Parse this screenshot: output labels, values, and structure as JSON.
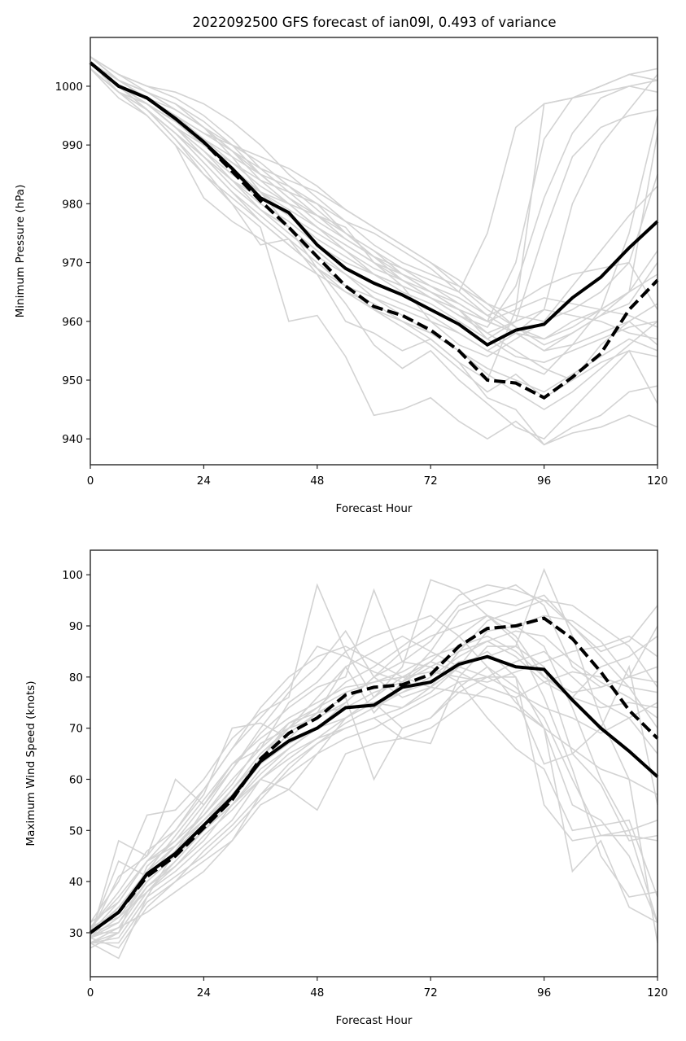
{
  "chart_data": [
    {
      "type": "line",
      "title": "2022092500 GFS forecast of ian09l, 0.493 of variance",
      "xlabel": "Forecast Hour",
      "ylabel": "Minimum Pressure (hPa)",
      "xlim": [
        0,
        120
      ],
      "ylim": [
        935.6,
        1008.3
      ],
      "xticks": [
        0,
        24,
        48,
        72,
        96,
        120
      ],
      "yticks": [
        940,
        950,
        960,
        970,
        980,
        990,
        1000
      ],
      "grid": false,
      "legend": "none",
      "x": [
        0,
        6,
        12,
        18,
        24,
        30,
        36,
        42,
        48,
        54,
        60,
        66,
        72,
        78,
        84,
        90,
        96,
        102,
        108,
        114,
        120
      ],
      "series": [
        {
          "name": "solid-mean",
          "style": "solid",
          "color": "#000000",
          "values": [
            1004,
            1000,
            998,
            994.5,
            990.5,
            986,
            981,
            978.5,
            973,
            969,
            966.5,
            964.5,
            962,
            959.5,
            956,
            958.5,
            959.5,
            964,
            967.5,
            972.5,
            977
          ]
        },
        {
          "name": "dashed-mean",
          "style": "dashed",
          "color": "#000000",
          "values": [
            1004,
            1000,
            998,
            994.5,
            990.5,
            985.5,
            980.5,
            976,
            971,
            966,
            962.5,
            961,
            958.5,
            955,
            950,
            949.5,
            947,
            950.5,
            954.5,
            962,
            967
          ]
        }
      ],
      "ensemble_color": "#d3d3d3",
      "ensemble": [
        [
          1005,
          1001,
          999,
          996,
          993,
          990,
          985,
          983,
          979,
          975,
          972,
          968,
          965,
          962,
          958,
          955,
          952,
          950,
          956,
          960,
          963
        ],
        [
          1004,
          1000,
          998,
          995,
          991,
          987,
          983,
          980,
          976,
          972,
          968,
          965,
          963,
          960,
          957,
          960,
          975,
          988,
          993,
          995,
          996
        ],
        [
          1003,
          999,
          997,
          993,
          988,
          984,
          979,
          976,
          972,
          968,
          965,
          963,
          961,
          958,
          955,
          958,
          962,
          980,
          990,
          996,
          1002
        ],
        [
          1005,
          1002,
          1000,
          998,
          995,
          991,
          986,
          982,
          978,
          974,
          971,
          967,
          964,
          961,
          959,
          966,
          981,
          992,
          998,
          1000,
          1001
        ],
        [
          1004,
          1000,
          997,
          993,
          989,
          984,
          980,
          977,
          973,
          970,
          968,
          966,
          964,
          962,
          960,
          970,
          991,
          998,
          1000,
          1002,
          1003
        ],
        [
          1003,
          999,
          996,
          992,
          987,
          982,
          978,
          974,
          970,
          966,
          962,
          960,
          957,
          953,
          950,
          962,
          997,
          998,
          1000,
          1002,
          1001
        ],
        [
          1004,
          1001,
          999,
          997,
          994,
          990,
          987,
          983,
          980,
          975,
          971,
          969,
          967,
          965,
          975,
          993,
          997,
          998,
          999,
          1000,
          999
        ],
        [
          1005,
          1002,
          1000,
          999,
          997,
          994,
          990,
          985,
          981,
          977,
          973,
          970,
          968,
          966,
          963,
          961,
          960,
          962,
          965,
          970,
          985
        ],
        [
          1003,
          998,
          995,
          990,
          985,
          981,
          977,
          973,
          969,
          966,
          964,
          962,
          960,
          958,
          955,
          953,
          951,
          956,
          962,
          975,
          995
        ],
        [
          1004,
          1000,
          996,
          992,
          988,
          984,
          981,
          978,
          975,
          972,
          969,
          967,
          965,
          963,
          960,
          958,
          955,
          958,
          961,
          965,
          992
        ],
        [
          1004,
          1000,
          997,
          993,
          989,
          985,
          982,
          980,
          978,
          976,
          970,
          966,
          960,
          956,
          954,
          957,
          960,
          966,
          972,
          978,
          983
        ],
        [
          1005,
          1001,
          998,
          995,
          992,
          989,
          986,
          984,
          982,
          979,
          976,
          973,
          970,
          967,
          963,
          959,
          956,
          958,
          961,
          963,
          970
        ],
        [
          1003,
          999,
          996,
          991,
          986,
          980,
          973,
          974,
          968,
          960,
          958,
          955,
          957,
          953,
          947,
          945,
          939,
          941,
          942,
          944,
          942
        ],
        [
          1004,
          1000,
          996,
          991,
          985,
          980,
          976,
          960,
          961,
          954,
          944,
          945,
          947,
          943,
          940,
          943,
          939,
          942,
          944,
          948,
          949
        ],
        [
          1004,
          1000,
          996,
          992,
          987,
          982,
          977,
          973,
          969,
          965,
          963,
          960,
          958,
          955,
          952,
          950,
          948,
          951,
          954,
          957,
          955
        ],
        [
          1005,
          1002,
          999,
          996,
          993,
          988,
          982,
          976,
          969,
          963,
          956,
          952,
          955,
          950,
          946,
          942,
          940,
          945,
          950,
          955,
          946
        ],
        [
          1004,
          1000,
          997,
          994,
          991,
          988,
          985,
          981,
          977,
          974,
          971,
          968,
          965,
          962,
          957,
          954,
          953,
          955,
          957,
          959,
          960
        ],
        [
          1003,
          999,
          997,
          993,
          990,
          987,
          984,
          982,
          980,
          977,
          975,
          972,
          969,
          965,
          961,
          958,
          955,
          956,
          958,
          960,
          956
        ],
        [
          1004,
          1001,
          998,
          995,
          992,
          990,
          988,
          986,
          983,
          979,
          976,
          973,
          970,
          966,
          962,
          959,
          957,
          959,
          962,
          965,
          968
        ],
        [
          1004,
          999,
          995,
          990,
          981,
          977,
          974,
          971,
          968,
          965,
          962,
          959,
          956,
          952,
          948,
          951,
          947,
          950,
          953,
          955,
          954
        ],
        [
          1004,
          1000,
          997,
          994,
          990,
          986,
          982,
          979,
          976,
          973,
          970,
          967,
          964,
          961,
          958,
          960,
          962,
          961,
          960,
          958,
          957
        ],
        [
          1005,
          1001,
          998,
          994,
          990,
          986,
          982,
          978,
          974,
          971,
          968,
          966,
          964,
          962,
          960,
          962,
          964,
          963,
          962,
          961,
          959
        ],
        [
          1004,
          1000,
          998,
          996,
          993,
          989,
          985,
          981,
          978,
          975,
          972,
          969,
          966,
          963,
          960,
          958,
          957,
          960,
          962,
          965,
          972
        ],
        [
          1003,
          999,
          996,
          992,
          988,
          983,
          979,
          975,
          971,
          968,
          964,
          961,
          958,
          955,
          951,
          948,
          945,
          948,
          952,
          956,
          960
        ],
        [
          1004,
          1001,
          999,
          997,
          993,
          989,
          984,
          980,
          976,
          973,
          970,
          968,
          966,
          964,
          961,
          963,
          966,
          968,
          969,
          970,
          962
        ]
      ]
    },
    {
      "type": "line",
      "title": "",
      "xlabel": "Forecast Hour",
      "ylabel": "Maximum Wind Speed (knots)",
      "xlim": [
        0,
        120
      ],
      "ylim": [
        21.4,
        104.8
      ],
      "xticks": [
        0,
        24,
        48,
        72,
        96,
        120
      ],
      "yticks": [
        30,
        40,
        50,
        60,
        70,
        80,
        90,
        100
      ],
      "grid": false,
      "legend": "none",
      "x": [
        0,
        6,
        12,
        18,
        24,
        30,
        36,
        42,
        48,
        54,
        60,
        66,
        72,
        78,
        84,
        90,
        96,
        102,
        108,
        114,
        120
      ],
      "series": [
        {
          "name": "solid-mean",
          "style": "solid",
          "color": "#000000",
          "values": [
            30,
            34,
            41.5,
            45.5,
            51,
            56.5,
            63.5,
            67.5,
            70,
            74,
            74.5,
            78,
            79,
            82.5,
            84,
            82,
            81.5,
            75.5,
            70,
            65.5,
            60.5
          ]
        },
        {
          "name": "dashed-mean",
          "style": "dashed",
          "color": "#000000",
          "values": [
            30,
            34,
            41,
            45,
            50.5,
            56,
            64,
            69,
            72,
            76.5,
            78,
            78.5,
            80.5,
            86,
            89.5,
            90,
            91.5,
            87.5,
            81,
            73.5,
            68
          ]
        }
      ],
      "ensemble_color": "#d3d3d3",
      "ensemble": [
        [
          29,
          48,
          45,
          52,
          58,
          66,
          72,
          78,
          86,
          84,
          81,
          79,
          85,
          93,
          95,
          94,
          96,
          90,
          85,
          87,
          94
        ],
        [
          31,
          33,
          38,
          44,
          50,
          55,
          61,
          66,
          70,
          75,
          80,
          85,
          88,
          90,
          92,
          90,
          86,
          74,
          60,
          50,
          32
        ],
        [
          28,
          25,
          37,
          46,
          54,
          62,
          70,
          77,
          82,
          89,
          80,
          76,
          78,
          82,
          85,
          80,
          55,
          48,
          49,
          50,
          52
        ],
        [
          30,
          30,
          43,
          48,
          55,
          62,
          69,
          74,
          78,
          80,
          97,
          83,
          87,
          94,
          96,
          98,
          94,
          82,
          78,
          80,
          90
        ],
        [
          32,
          40,
          53,
          54,
          60,
          68,
          73,
          76,
          98,
          85,
          76,
          82,
          99,
          97,
          92,
          88,
          80,
          76,
          82,
          84,
          88
        ],
        [
          29,
          35,
          41,
          46,
          52,
          58,
          64,
          70,
          72,
          75,
          80,
          83,
          82,
          79,
          72,
          66,
          62,
          50,
          51,
          52,
          37
        ],
        [
          28,
          28,
          36,
          40,
          44,
          48,
          55,
          58,
          65,
          72,
          75,
          70,
          72,
          78,
          82,
          78,
          72,
          60,
          49,
          49,
          48
        ],
        [
          30,
          44,
          41,
          47,
          52,
          57,
          63,
          69,
          73,
          82,
          73,
          79,
          83,
          88,
          92,
          87,
          76,
          62,
          45,
          37,
          38
        ],
        [
          27,
          30,
          38,
          42,
          47,
          52,
          60,
          65,
          68,
          70,
          72,
          68,
          67,
          80,
          86,
          86,
          101,
          88,
          72,
          60,
          28
        ],
        [
          31,
          38,
          46,
          50,
          57,
          70,
          71,
          68,
          73,
          76,
          60,
          70,
          72,
          77,
          80,
          80,
          70,
          55,
          52,
          45,
          32
        ],
        [
          29,
          32,
          39,
          43,
          48,
          55,
          62,
          66,
          70,
          72,
          75,
          74,
          77,
          82,
          89,
          90,
          92,
          91,
          87,
          80,
          82
        ],
        [
          30,
          41,
          45,
          60,
          55,
          63,
          66,
          75,
          79,
          85,
          88,
          90,
          92,
          88,
          82,
          75,
          70,
          42,
          48,
          35,
          32
        ],
        [
          28,
          31,
          34,
          38,
          42,
          48,
          57,
          63,
          67,
          70,
          72,
          74,
          78,
          85,
          91,
          93,
          95,
          94,
          90,
          86,
          78
        ],
        [
          30,
          36,
          44,
          48,
          53,
          59,
          67,
          70,
          76,
          82,
          85,
          88,
          85,
          82,
          80,
          83,
          85,
          80,
          75,
          72,
          65
        ],
        [
          29,
          33,
          40,
          45,
          50,
          55,
          60,
          58,
          54,
          65,
          67,
          68,
          70,
          74,
          78,
          76,
          63,
          65,
          70,
          82,
          55
        ],
        [
          31,
          34,
          42,
          47,
          52,
          57,
          64,
          71,
          74,
          77,
          79,
          81,
          84,
          86,
          88,
          85,
          80,
          77,
          78,
          80,
          79
        ],
        [
          28,
          29,
          37,
          41,
          45,
          50,
          56,
          62,
          67,
          71,
          74,
          77,
          80,
          84,
          87,
          89,
          88,
          83,
          79,
          76,
          72
        ],
        [
          30,
          35,
          42,
          49,
          56,
          63,
          68,
          72,
          75,
          78,
          79,
          80,
          81,
          80,
          79,
          81,
          83,
          85,
          86,
          88,
          84
        ],
        [
          29,
          27,
          35,
          40,
          46,
          51,
          57,
          61,
          65,
          68,
          70,
          73,
          76,
          79,
          80,
          77,
          74,
          72,
          69,
          72,
          75
        ],
        [
          32,
          36,
          44,
          50,
          58,
          66,
          74,
          80,
          84,
          86,
          83,
          80,
          78,
          77,
          76,
          74,
          70,
          66,
          62,
          60,
          57
        ],
        [
          30,
          32,
          40,
          45,
          51,
          58,
          65,
          70,
          74,
          79,
          82,
          86,
          90,
          96,
          98,
          97,
          95,
          90,
          84,
          78,
          70
        ],
        [
          28,
          30,
          38,
          43,
          49,
          54,
          60,
          64,
          68,
          72,
          76,
          80,
          83,
          81,
          78,
          76,
          79,
          81,
          80,
          78,
          77
        ],
        [
          31,
          37,
          44,
          47,
          53,
          60,
          66,
          71,
          73,
          74,
          75,
          77,
          79,
          83,
          84,
          86,
          82,
          65,
          59,
          48,
          49
        ],
        [
          29,
          31,
          39,
          44,
          50,
          56,
          63,
          67,
          70,
          74,
          77,
          79,
          82,
          85,
          87,
          84,
          79,
          76,
          74,
          75,
          74
        ]
      ]
    }
  ]
}
